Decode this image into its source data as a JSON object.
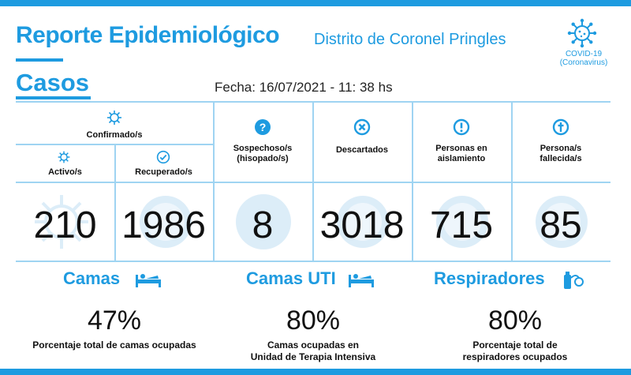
{
  "header": {
    "title": "Reporte Epidemiológico",
    "subtitle": "Distrito de Coronel Pringles",
    "section": "Casos",
    "fecha": "Fecha: 16/07/2021 - 11: 38 hs",
    "logo_line1": "COVID-19",
    "logo_line2": "(Coronavirus)"
  },
  "stats": {
    "confirmados_label": "Confirmado/s",
    "activos_label": "Activo/s",
    "activos_value": "210",
    "recuperados_label": "Recuperado/s",
    "recuperados_value": "1986",
    "sospechosos_label_1": "Sospechoso/s",
    "sospechosos_label_2": "(hisopado/s)",
    "sospechosos_value": "8",
    "descartados_label": "Descartados",
    "descartados_value": "3018",
    "aislamiento_label_1": "Personas en",
    "aislamiento_label_2": "aislamiento",
    "aislamiento_value": "715",
    "fallecidos_label_1": "Persona/s",
    "fallecidos_label_2": "fallecida/s",
    "fallecidos_value": "85"
  },
  "camas": {
    "title": "Camas",
    "value": "47%",
    "desc_1": "Porcentaje total de camas ocupadas"
  },
  "camas_uti": {
    "title": "Camas UTI",
    "value": "80%",
    "desc_1": "Camas ocupadas en",
    "desc_2": "Unidad de Terapia Intensiva"
  },
  "respiradores": {
    "title": "Respiradores",
    "value": "80%",
    "desc_1": "Porcentaje total de",
    "desc_2": "respiradores ocupados"
  },
  "colors": {
    "accent": "#1e9be0",
    "divider": "#9fd4f2",
    "watermark": "#dcedf8"
  }
}
